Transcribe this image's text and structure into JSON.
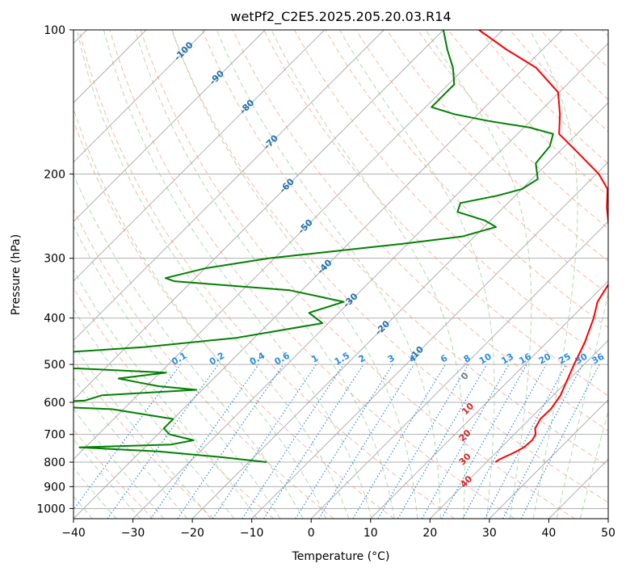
{
  "chart_data": {
    "type": "line",
    "title": "wetPf2_C2E5.2025.205.20.03.R14",
    "xlabel": "Temperature (°C)",
    "ylabel": "Pressure (hPa)",
    "xlim": [
      -40,
      50
    ],
    "ylim": [
      1050,
      100
    ],
    "y_scale": "log",
    "skew": 45,
    "grid": true,
    "x_ticks": [
      "−40",
      "−30",
      "−20",
      "−10",
      "0",
      "10",
      "20",
      "30",
      "40",
      "50"
    ],
    "y_ticks": [
      "100",
      "200",
      "300",
      "400",
      "500",
      "600",
      "700",
      "800",
      "900",
      "1000"
    ],
    "y_tick_values": [
      100,
      200,
      300,
      400,
      500,
      600,
      700,
      800,
      900,
      1000
    ],
    "temperature": {
      "color": "#ff0000",
      "points": [
        [
          800,
          21.5
        ],
        [
          790,
          21.7
        ],
        [
          780,
          22.2
        ],
        [
          765,
          23.0
        ],
        [
          745,
          23.8
        ],
        [
          720,
          24.0
        ],
        [
          700,
          23.6
        ],
        [
          680,
          22.5
        ],
        [
          650,
          21.8
        ],
        [
          620,
          21.9
        ],
        [
          580,
          21.2
        ],
        [
          540,
          19.8
        ],
        [
          500,
          18.3
        ],
        [
          450,
          16.4
        ],
        [
          400,
          13.8
        ],
        [
          370,
          11.7
        ],
        [
          340,
          10.6
        ],
        [
          300,
          7.6
        ],
        [
          260,
          1.3
        ],
        [
          235,
          -2.6
        ],
        [
          215,
          -5.6
        ],
        [
          200,
          -9.6
        ],
        [
          180,
          -16.9
        ],
        [
          165,
          -23.0
        ],
        [
          150,
          -26.2
        ],
        [
          135,
          -30.2
        ],
        [
          120,
          -38.0
        ],
        [
          110,
          -46.0
        ],
        [
          100,
          -54.0
        ]
      ]
    },
    "dewpoint": {
      "color": "#008000",
      "points": [
        [
          800,
          -17.0
        ],
        [
          780,
          -26.0
        ],
        [
          760,
          -37.0
        ],
        [
          745,
          -51.0
        ],
        [
          735,
          -36.0
        ],
        [
          720,
          -33.0
        ],
        [
          700,
          -38.0
        ],
        [
          680,
          -40.0
        ],
        [
          650,
          -40.0
        ],
        [
          620,
          -52.0
        ],
        [
          605,
          -74.0
        ],
        [
          595,
          -58.0
        ],
        [
          580,
          -56.0
        ],
        [
          565,
          -41.0
        ],
        [
          555,
          -48.0
        ],
        [
          545,
          -52.0
        ],
        [
          535,
          -56.0
        ],
        [
          520,
          -49.0
        ],
        [
          510,
          -64.0
        ],
        [
          500,
          -92.0
        ],
        [
          480,
          -78.0
        ],
        [
          460,
          -57.0
        ],
        [
          440,
          -43.0
        ],
        [
          410,
          -31.0
        ],
        [
          390,
          -35.0
        ],
        [
          370,
          -31.0
        ],
        [
          350,
          -42.0
        ],
        [
          335,
          -63.0
        ],
        [
          330,
          -65.0
        ],
        [
          315,
          -60.0
        ],
        [
          300,
          -51.0
        ],
        [
          295,
          -46.0
        ],
        [
          280,
          -31.0
        ],
        [
          270,
          -22.0
        ],
        [
          258,
          -18.0
        ],
        [
          250,
          -21.0
        ],
        [
          240,
          -27.0
        ],
        [
          230,
          -28.0
        ],
        [
          222,
          -23.0
        ],
        [
          215,
          -20.0
        ],
        [
          205,
          -19.0
        ],
        [
          190,
          -22.0
        ],
        [
          175,
          -22.5
        ],
        [
          165,
          -24.0
        ],
        [
          160,
          -29.0
        ],
        [
          155,
          -37.0
        ],
        [
          150,
          -44.0
        ],
        [
          145,
          -49.0
        ],
        [
          135,
          -49.0
        ],
        [
          130,
          -49.0
        ],
        [
          120,
          -52.0
        ],
        [
          110,
          -56.0
        ],
        [
          100,
          -60.0
        ]
      ]
    },
    "dry_adiabats_label": [
      "-100",
      "-90",
      "-80",
      "-70",
      "-60",
      "-50",
      "-40",
      "-30",
      "-20",
      "-10"
    ],
    "moist_adiabats_label": [
      "10",
      "20",
      "30",
      "40"
    ],
    "lcl_label": "0",
    "mixing_ratio_labels": [
      "0.1",
      "0.2",
      "0.4",
      "0.6",
      "1",
      "1.5",
      "2",
      "3",
      "4",
      "6",
      "8",
      "10",
      "13",
      "16",
      "20",
      "25",
      "30",
      "36"
    ],
    "mixing_ratio_values": [
      0.1,
      0.2,
      0.4,
      0.6,
      1,
      1.5,
      2,
      3,
      4,
      6,
      8,
      10,
      13,
      16,
      20,
      25,
      30,
      36
    ],
    "colors": {
      "temperature": "#ff0000",
      "dewpoint": "#008000",
      "isotherm_grid": "#b0b0b0",
      "dry_adiabat": "#f08060",
      "moist_adiabat": "#7fbf7f",
      "mixing_ratio": "#2b8de0",
      "dry_label": "#1f6fb0",
      "moist_label": "#d62728"
    }
  }
}
